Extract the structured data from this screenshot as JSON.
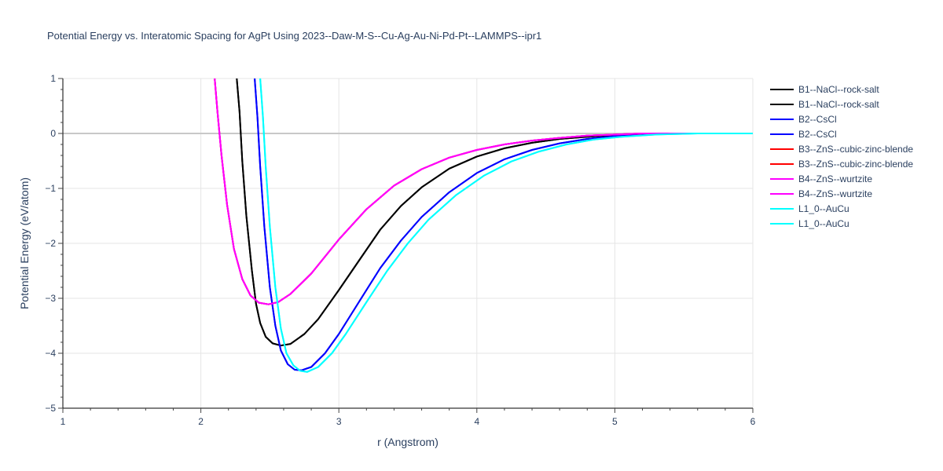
{
  "chart_data": {
    "type": "line",
    "title": "Potential Energy vs. Interatomic Spacing for AgPt Using 2023--Daw-M-S--Cu-Ag-Au-Ni-Pd-Pt--LAMMPS--ipr1",
    "xlabel": "r (Angstrom)",
    "ylabel": "Potential Energy (eV/atom)",
    "xlim": [
      1,
      6
    ],
    "ylim": [
      -5,
      1
    ],
    "x_ticks": [
      1,
      2,
      3,
      4,
      5,
      6
    ],
    "y_ticks": [
      1,
      0,
      -1,
      -2,
      -3,
      -4,
      -5
    ],
    "x_tick_labels": [
      "1",
      "2",
      "3",
      "4",
      "5",
      "6"
    ],
    "y_tick_labels": [
      "1",
      "0",
      "−1",
      "−2",
      "−3",
      "−4",
      "−5"
    ],
    "grid": true,
    "legend_position": "right",
    "series": [
      {
        "name": "B1--NaCl--rock-salt",
        "color": "#000000",
        "points": [
          [
            2.26,
            1.0
          ],
          [
            2.28,
            0.4
          ],
          [
            2.3,
            -0.5
          ],
          [
            2.33,
            -1.5
          ],
          [
            2.37,
            -2.5
          ],
          [
            2.4,
            -3.1
          ],
          [
            2.43,
            -3.45
          ],
          [
            2.47,
            -3.7
          ],
          [
            2.52,
            -3.82
          ],
          [
            2.58,
            -3.86
          ],
          [
            2.65,
            -3.83
          ],
          [
            2.75,
            -3.65
          ],
          [
            2.85,
            -3.38
          ],
          [
            3.0,
            -2.85
          ],
          [
            3.15,
            -2.3
          ],
          [
            3.3,
            -1.75
          ],
          [
            3.45,
            -1.32
          ],
          [
            3.6,
            -0.98
          ],
          [
            3.8,
            -0.64
          ],
          [
            4.0,
            -0.42
          ],
          [
            4.2,
            -0.27
          ],
          [
            4.4,
            -0.17
          ],
          [
            4.6,
            -0.1
          ],
          [
            4.8,
            -0.06
          ],
          [
            5.0,
            -0.03
          ],
          [
            5.2,
            -0.01
          ],
          [
            5.5,
            0.0
          ],
          [
            6.0,
            0.0
          ]
        ]
      },
      {
        "name": "B1--NaCl--rock-salt",
        "color": "#000000",
        "points": [
          [
            2.26,
            1.0
          ],
          [
            2.28,
            0.4
          ],
          [
            2.3,
            -0.5
          ],
          [
            2.33,
            -1.5
          ],
          [
            2.37,
            -2.5
          ],
          [
            2.4,
            -3.1
          ],
          [
            2.43,
            -3.45
          ],
          [
            2.47,
            -3.7
          ],
          [
            2.52,
            -3.82
          ],
          [
            2.58,
            -3.86
          ],
          [
            2.65,
            -3.83
          ],
          [
            2.75,
            -3.65
          ],
          [
            2.85,
            -3.38
          ],
          [
            3.0,
            -2.85
          ],
          [
            3.15,
            -2.3
          ],
          [
            3.3,
            -1.75
          ],
          [
            3.45,
            -1.32
          ],
          [
            3.6,
            -0.98
          ],
          [
            3.8,
            -0.64
          ],
          [
            4.0,
            -0.42
          ],
          [
            4.2,
            -0.27
          ],
          [
            4.4,
            -0.17
          ],
          [
            4.6,
            -0.1
          ],
          [
            4.8,
            -0.06
          ],
          [
            5.0,
            -0.03
          ],
          [
            5.2,
            -0.01
          ],
          [
            5.5,
            0.0
          ],
          [
            6.0,
            0.0
          ]
        ]
      },
      {
        "name": "B2--CsCl",
        "color": "#0000ff",
        "points": [
          [
            2.39,
            1.0
          ],
          [
            2.41,
            0.3
          ],
          [
            2.43,
            -0.6
          ],
          [
            2.46,
            -1.7
          ],
          [
            2.5,
            -2.8
          ],
          [
            2.54,
            -3.5
          ],
          [
            2.58,
            -3.95
          ],
          [
            2.63,
            -4.2
          ],
          [
            2.68,
            -4.3
          ],
          [
            2.73,
            -4.31
          ],
          [
            2.8,
            -4.25
          ],
          [
            2.9,
            -4.0
          ],
          [
            3.0,
            -3.65
          ],
          [
            3.15,
            -3.05
          ],
          [
            3.3,
            -2.45
          ],
          [
            3.45,
            -1.95
          ],
          [
            3.6,
            -1.52
          ],
          [
            3.8,
            -1.07
          ],
          [
            4.0,
            -0.72
          ],
          [
            4.2,
            -0.47
          ],
          [
            4.4,
            -0.3
          ],
          [
            4.6,
            -0.18
          ],
          [
            4.8,
            -0.1
          ],
          [
            5.0,
            -0.05
          ],
          [
            5.2,
            -0.02
          ],
          [
            5.5,
            0.0
          ],
          [
            6.0,
            0.0
          ]
        ]
      },
      {
        "name": "B2--CsCl",
        "color": "#0000ff",
        "points": [
          [
            2.39,
            1.0
          ],
          [
            2.41,
            0.3
          ],
          [
            2.43,
            -0.6
          ],
          [
            2.46,
            -1.7
          ],
          [
            2.5,
            -2.8
          ],
          [
            2.54,
            -3.5
          ],
          [
            2.58,
            -3.95
          ],
          [
            2.63,
            -4.2
          ],
          [
            2.68,
            -4.3
          ],
          [
            2.73,
            -4.31
          ],
          [
            2.8,
            -4.25
          ],
          [
            2.9,
            -4.0
          ],
          [
            3.0,
            -3.65
          ],
          [
            3.15,
            -3.05
          ],
          [
            3.3,
            -2.45
          ],
          [
            3.45,
            -1.95
          ],
          [
            3.6,
            -1.52
          ],
          [
            3.8,
            -1.07
          ],
          [
            4.0,
            -0.72
          ],
          [
            4.2,
            -0.47
          ],
          [
            4.4,
            -0.3
          ],
          [
            4.6,
            -0.18
          ],
          [
            4.8,
            -0.1
          ],
          [
            5.0,
            -0.05
          ],
          [
            5.2,
            -0.02
          ],
          [
            5.5,
            0.0
          ],
          [
            6.0,
            0.0
          ]
        ]
      },
      {
        "name": "B3--ZnS--cubic-zinc-blende",
        "color": "#ff0000",
        "points": [
          [
            2.1,
            1.0
          ],
          [
            2.12,
            0.4
          ],
          [
            2.15,
            -0.4
          ],
          [
            2.19,
            -1.3
          ],
          [
            2.24,
            -2.1
          ],
          [
            2.3,
            -2.65
          ],
          [
            2.36,
            -2.95
          ],
          [
            2.42,
            -3.08
          ],
          [
            2.49,
            -3.11
          ],
          [
            2.56,
            -3.07
          ],
          [
            2.65,
            -2.92
          ],
          [
            2.8,
            -2.55
          ],
          [
            3.0,
            -1.93
          ],
          [
            3.2,
            -1.38
          ],
          [
            3.4,
            -0.95
          ],
          [
            3.6,
            -0.65
          ],
          [
            3.8,
            -0.44
          ],
          [
            4.0,
            -0.3
          ],
          [
            4.2,
            -0.2
          ],
          [
            4.4,
            -0.13
          ],
          [
            4.6,
            -0.08
          ],
          [
            4.8,
            -0.04
          ],
          [
            5.0,
            -0.02
          ],
          [
            5.2,
            0.0
          ],
          [
            5.5,
            0.0
          ],
          [
            6.0,
            0.0
          ]
        ]
      },
      {
        "name": "B3--ZnS--cubic-zinc-blende",
        "color": "#ff0000",
        "points": [
          [
            2.1,
            1.0
          ],
          [
            2.12,
            0.4
          ],
          [
            2.15,
            -0.4
          ],
          [
            2.19,
            -1.3
          ],
          [
            2.24,
            -2.1
          ],
          [
            2.3,
            -2.65
          ],
          [
            2.36,
            -2.95
          ],
          [
            2.42,
            -3.08
          ],
          [
            2.49,
            -3.11
          ],
          [
            2.56,
            -3.07
          ],
          [
            2.65,
            -2.92
          ],
          [
            2.8,
            -2.55
          ],
          [
            3.0,
            -1.93
          ],
          [
            3.2,
            -1.38
          ],
          [
            3.4,
            -0.95
          ],
          [
            3.6,
            -0.65
          ],
          [
            3.8,
            -0.44
          ],
          [
            4.0,
            -0.3
          ],
          [
            4.2,
            -0.2
          ],
          [
            4.4,
            -0.13
          ],
          [
            4.6,
            -0.08
          ],
          [
            4.8,
            -0.04
          ],
          [
            5.0,
            -0.02
          ],
          [
            5.2,
            0.0
          ],
          [
            5.5,
            0.0
          ],
          [
            6.0,
            0.0
          ]
        ]
      },
      {
        "name": "B4--ZnS--wurtzite",
        "color": "#ff00ff",
        "points": [
          [
            2.1,
            1.0
          ],
          [
            2.12,
            0.4
          ],
          [
            2.15,
            -0.4
          ],
          [
            2.19,
            -1.3
          ],
          [
            2.24,
            -2.1
          ],
          [
            2.3,
            -2.65
          ],
          [
            2.36,
            -2.95
          ],
          [
            2.42,
            -3.08
          ],
          [
            2.49,
            -3.11
          ],
          [
            2.56,
            -3.07
          ],
          [
            2.65,
            -2.92
          ],
          [
            2.8,
            -2.55
          ],
          [
            3.0,
            -1.93
          ],
          [
            3.2,
            -1.38
          ],
          [
            3.4,
            -0.95
          ],
          [
            3.6,
            -0.65
          ],
          [
            3.8,
            -0.44
          ],
          [
            4.0,
            -0.3
          ],
          [
            4.2,
            -0.2
          ],
          [
            4.4,
            -0.13
          ],
          [
            4.6,
            -0.08
          ],
          [
            4.8,
            -0.04
          ],
          [
            5.0,
            -0.02
          ],
          [
            5.2,
            0.0
          ],
          [
            5.5,
            0.0
          ],
          [
            6.0,
            0.0
          ]
        ]
      },
      {
        "name": "B4--ZnS--wurtzite",
        "color": "#ff00ff",
        "points": [
          [
            2.1,
            1.0
          ],
          [
            2.12,
            0.4
          ],
          [
            2.15,
            -0.4
          ],
          [
            2.19,
            -1.3
          ],
          [
            2.24,
            -2.1
          ],
          [
            2.3,
            -2.65
          ],
          [
            2.36,
            -2.95
          ],
          [
            2.42,
            -3.08
          ],
          [
            2.49,
            -3.11
          ],
          [
            2.56,
            -3.07
          ],
          [
            2.65,
            -2.92
          ],
          [
            2.8,
            -2.55
          ],
          [
            3.0,
            -1.93
          ],
          [
            3.2,
            -1.38
          ],
          [
            3.4,
            -0.95
          ],
          [
            3.6,
            -0.65
          ],
          [
            3.8,
            -0.44
          ],
          [
            4.0,
            -0.3
          ],
          [
            4.2,
            -0.2
          ],
          [
            4.4,
            -0.13
          ],
          [
            4.6,
            -0.08
          ],
          [
            4.8,
            -0.04
          ],
          [
            5.0,
            -0.02
          ],
          [
            5.2,
            0.0
          ],
          [
            5.5,
            0.0
          ],
          [
            6.0,
            0.0
          ]
        ]
      },
      {
        "name": "L1_0--AuCu",
        "color": "#00ffff",
        "points": [
          [
            2.43,
            1.0
          ],
          [
            2.45,
            0.3
          ],
          [
            2.47,
            -0.6
          ],
          [
            2.5,
            -1.7
          ],
          [
            2.54,
            -2.8
          ],
          [
            2.58,
            -3.55
          ],
          [
            2.62,
            -4.0
          ],
          [
            2.67,
            -4.22
          ],
          [
            2.72,
            -4.32
          ],
          [
            2.77,
            -4.34
          ],
          [
            2.85,
            -4.25
          ],
          [
            2.95,
            -4.0
          ],
          [
            3.05,
            -3.65
          ],
          [
            3.2,
            -3.07
          ],
          [
            3.35,
            -2.5
          ],
          [
            3.5,
            -2.0
          ],
          [
            3.65,
            -1.57
          ],
          [
            3.85,
            -1.12
          ],
          [
            4.05,
            -0.77
          ],
          [
            4.25,
            -0.51
          ],
          [
            4.45,
            -0.33
          ],
          [
            4.65,
            -0.2
          ],
          [
            4.85,
            -0.11
          ],
          [
            5.05,
            -0.06
          ],
          [
            5.3,
            -0.02
          ],
          [
            5.6,
            0.0
          ],
          [
            6.0,
            0.0
          ]
        ]
      },
      {
        "name": "L1_0--AuCu",
        "color": "#00ffff",
        "points": [
          [
            2.43,
            1.0
          ],
          [
            2.45,
            0.3
          ],
          [
            2.47,
            -0.6
          ],
          [
            2.5,
            -1.7
          ],
          [
            2.54,
            -2.8
          ],
          [
            2.58,
            -3.55
          ],
          [
            2.62,
            -4.0
          ],
          [
            2.67,
            -4.22
          ],
          [
            2.72,
            -4.32
          ],
          [
            2.77,
            -4.34
          ],
          [
            2.85,
            -4.25
          ],
          [
            2.95,
            -4.0
          ],
          [
            3.05,
            -3.65
          ],
          [
            3.2,
            -3.07
          ],
          [
            3.35,
            -2.5
          ],
          [
            3.5,
            -2.0
          ],
          [
            3.65,
            -1.57
          ],
          [
            3.85,
            -1.12
          ],
          [
            4.05,
            -0.77
          ],
          [
            4.25,
            -0.51
          ],
          [
            4.45,
            -0.33
          ],
          [
            4.65,
            -0.2
          ],
          [
            4.85,
            -0.11
          ],
          [
            5.05,
            -0.06
          ],
          [
            5.3,
            -0.02
          ],
          [
            5.6,
            0.0
          ],
          [
            6.0,
            0.0
          ]
        ]
      }
    ]
  }
}
